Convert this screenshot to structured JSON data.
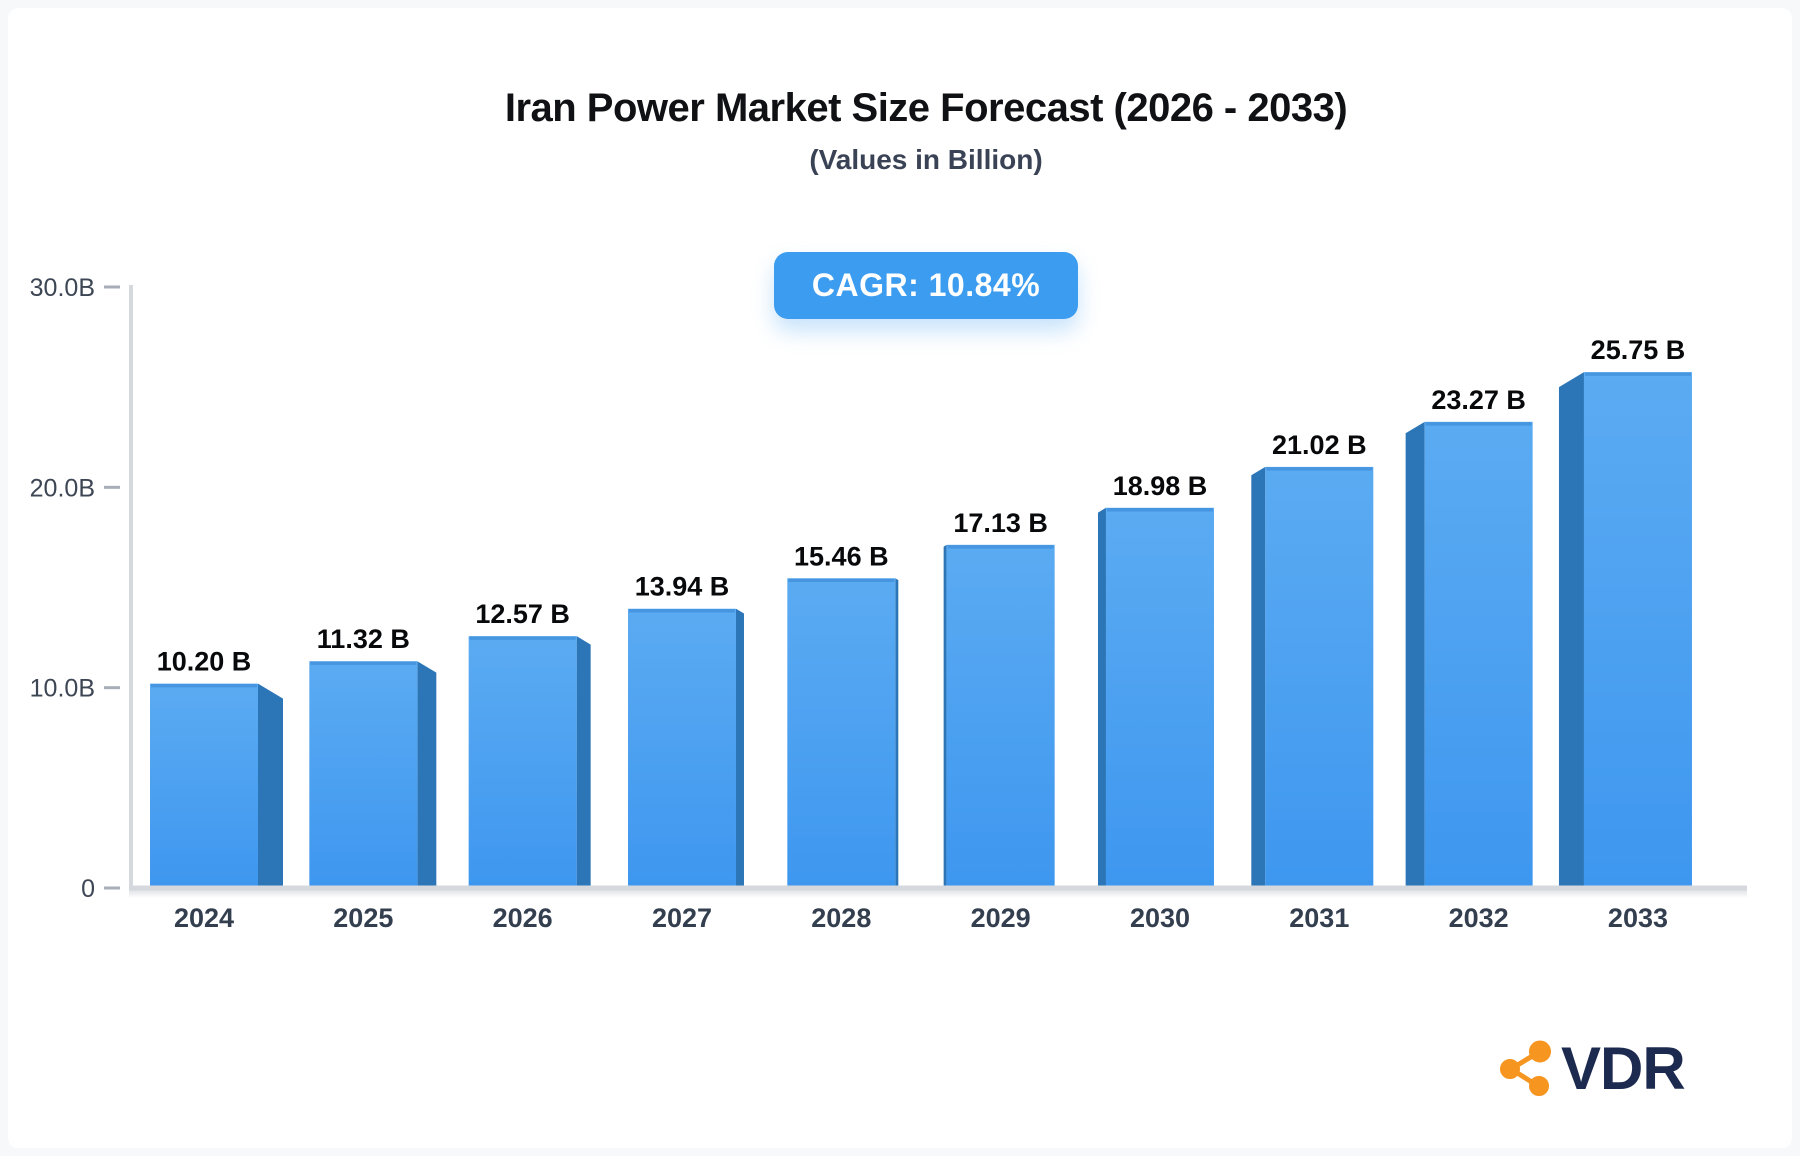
{
  "header": {
    "title": "Iran Power Market Size Forecast (2026 - 2033)",
    "subtitle": "(Values in Billion)",
    "cagr_badge": "CAGR: 10.84%"
  },
  "logo": {
    "text": "VDR",
    "icon": "share-network-icon"
  },
  "colors": {
    "background": "#f6f8fa",
    "card": "#ffffff",
    "bar_front_top": "#5babf2",
    "bar_front_bottom": "#3e97ef",
    "bar_top_edge": "#4392de",
    "bar_side": "#2c76b8",
    "badge_bg": "#3b9cf0",
    "badge_text": "#ffffff",
    "axis_line": "#d5d9de",
    "tick_mark": "#a7aeb8",
    "tick_label": "#3d4654",
    "year_label": "#333e4f",
    "value_label": "#08090b",
    "logo_text": "#1d2a4f",
    "logo_icon": "#f6951f"
  },
  "chart_data": {
    "type": "bar",
    "title": "Iran Power Market Size Forecast (2026 - 2033)",
    "subtitle": "(Values in Billion)",
    "annotations": [
      "CAGR: 10.84%"
    ],
    "categories": [
      "2024",
      "2025",
      "2026",
      "2027",
      "2028",
      "2029",
      "2030",
      "2031",
      "2032",
      "2033"
    ],
    "values": [
      10.2,
      11.32,
      12.57,
      13.94,
      15.46,
      17.13,
      18.98,
      21.02,
      23.27,
      25.75
    ],
    "value_labels": [
      "10.20 B",
      "11.32 B",
      "12.57 B",
      "13.94 B",
      "15.46 B",
      "17.13 B",
      "18.98 B",
      "21.02 B",
      "23.27 B",
      "25.75 B"
    ],
    "xlabel": "",
    "ylabel": "",
    "ylim": [
      0,
      30
    ],
    "yticks": [
      {
        "value": 0,
        "label": "0"
      },
      {
        "value": 10,
        "label": "10.0B"
      },
      {
        "value": 20,
        "label": "20.0B"
      },
      {
        "value": 30,
        "label": "30.0B"
      }
    ],
    "grid": false,
    "legend": "none",
    "style": "3d-perspective-bars"
  }
}
